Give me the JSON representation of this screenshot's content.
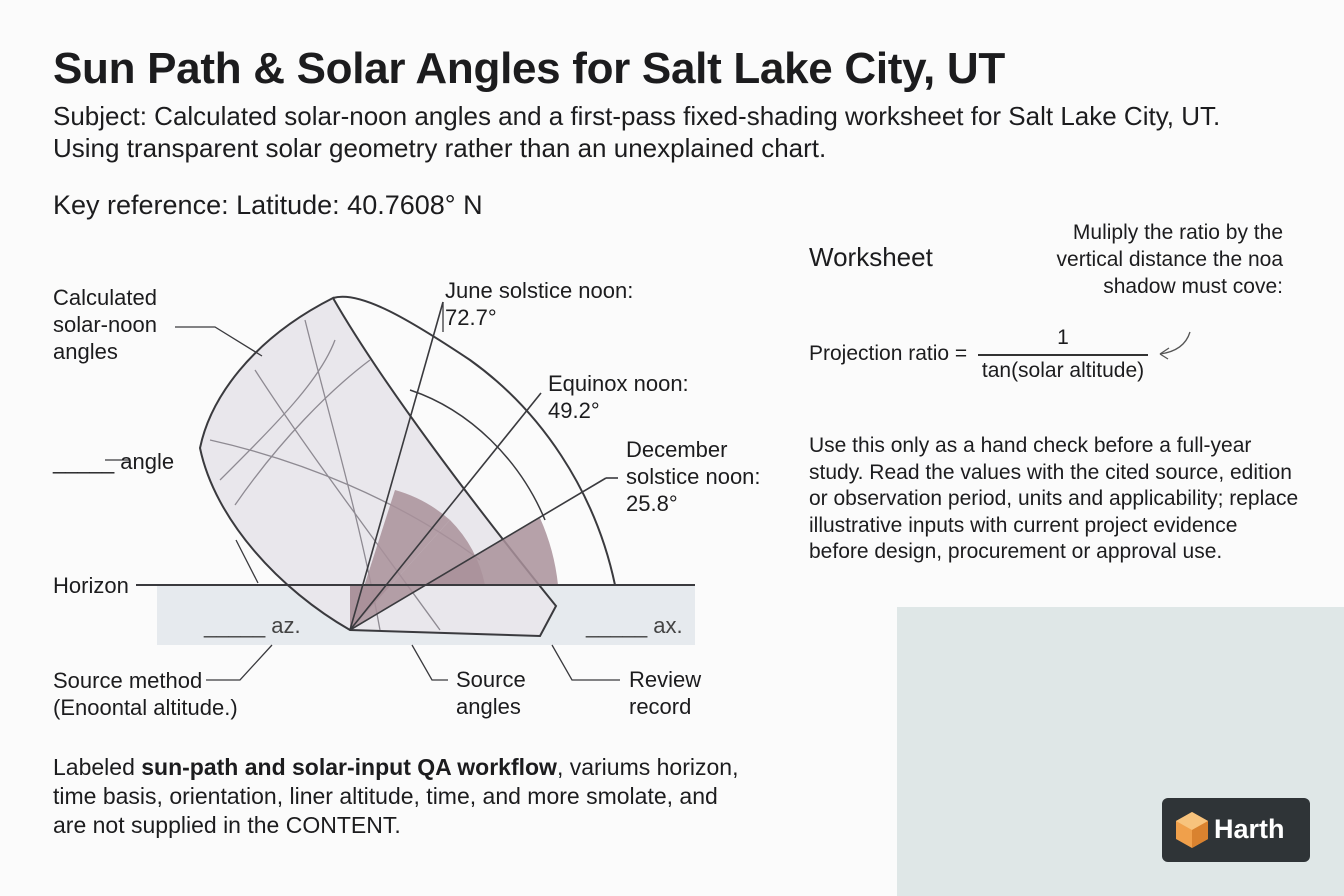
{
  "header": {
    "title": "Sun Path & Solar Angles for Salt Lake City, UT",
    "subtitle": "Subject: Calculated solar-noon angles and a first-pass fixed-shading worksheet for Salt Lake City, UT. Using transparent solar geometry rather than an unexplained chart.",
    "key_reference": "Key reference: Latitude: 40.7608° N"
  },
  "diagram": {
    "calculated_label": "Calculated solar-noon angles",
    "angle_label": "_____ angle",
    "horizon_label": "Horizon",
    "az_label": "_____ az.",
    "ax_label": "_____ ax.",
    "june_label": "June solstice noon: 72.7°",
    "equinox_label": "Equinox noon: 49.2°",
    "december_label": "December solstice noon: 25.8°",
    "source_method_label": "Source method",
    "source_method_sub": "(Enoontal altitude.)",
    "source_angles_label": "Source angles",
    "review_label": "Review record",
    "sun_altitudes_deg": [
      72.7,
      49.2,
      25.8
    ],
    "colors": {
      "wedge": "#a9919a",
      "dome": "#e9e7ec",
      "ground": "#e6eaee",
      "line": "#3a3a3e"
    }
  },
  "caption": {
    "prefix": "Labeled ",
    "bold": "sun-path and solar-input QA workflow",
    "suffix": ", variums horizon, time basis, orientation, liner altitude, time, and more smolate, and are not supplied in the CONTENT."
  },
  "worksheet": {
    "title": "Worksheet",
    "multiply_note": "Muliply the ratio by the vertical distance the noa shadow must cove:",
    "projection_label": "Projection ratio =",
    "numerator": "1",
    "denominator": "tan(solar altitude)",
    "use_note": "Use this only as a hand check before a full-year study. Read the values with the cited source, edition or observation period, units and applicability; replace illustrative inputs with current project evidence before design, procurement or approval use."
  },
  "logo": {
    "text": "Harth",
    "icon": "house-cube-icon",
    "accent": "#f0a04b"
  }
}
